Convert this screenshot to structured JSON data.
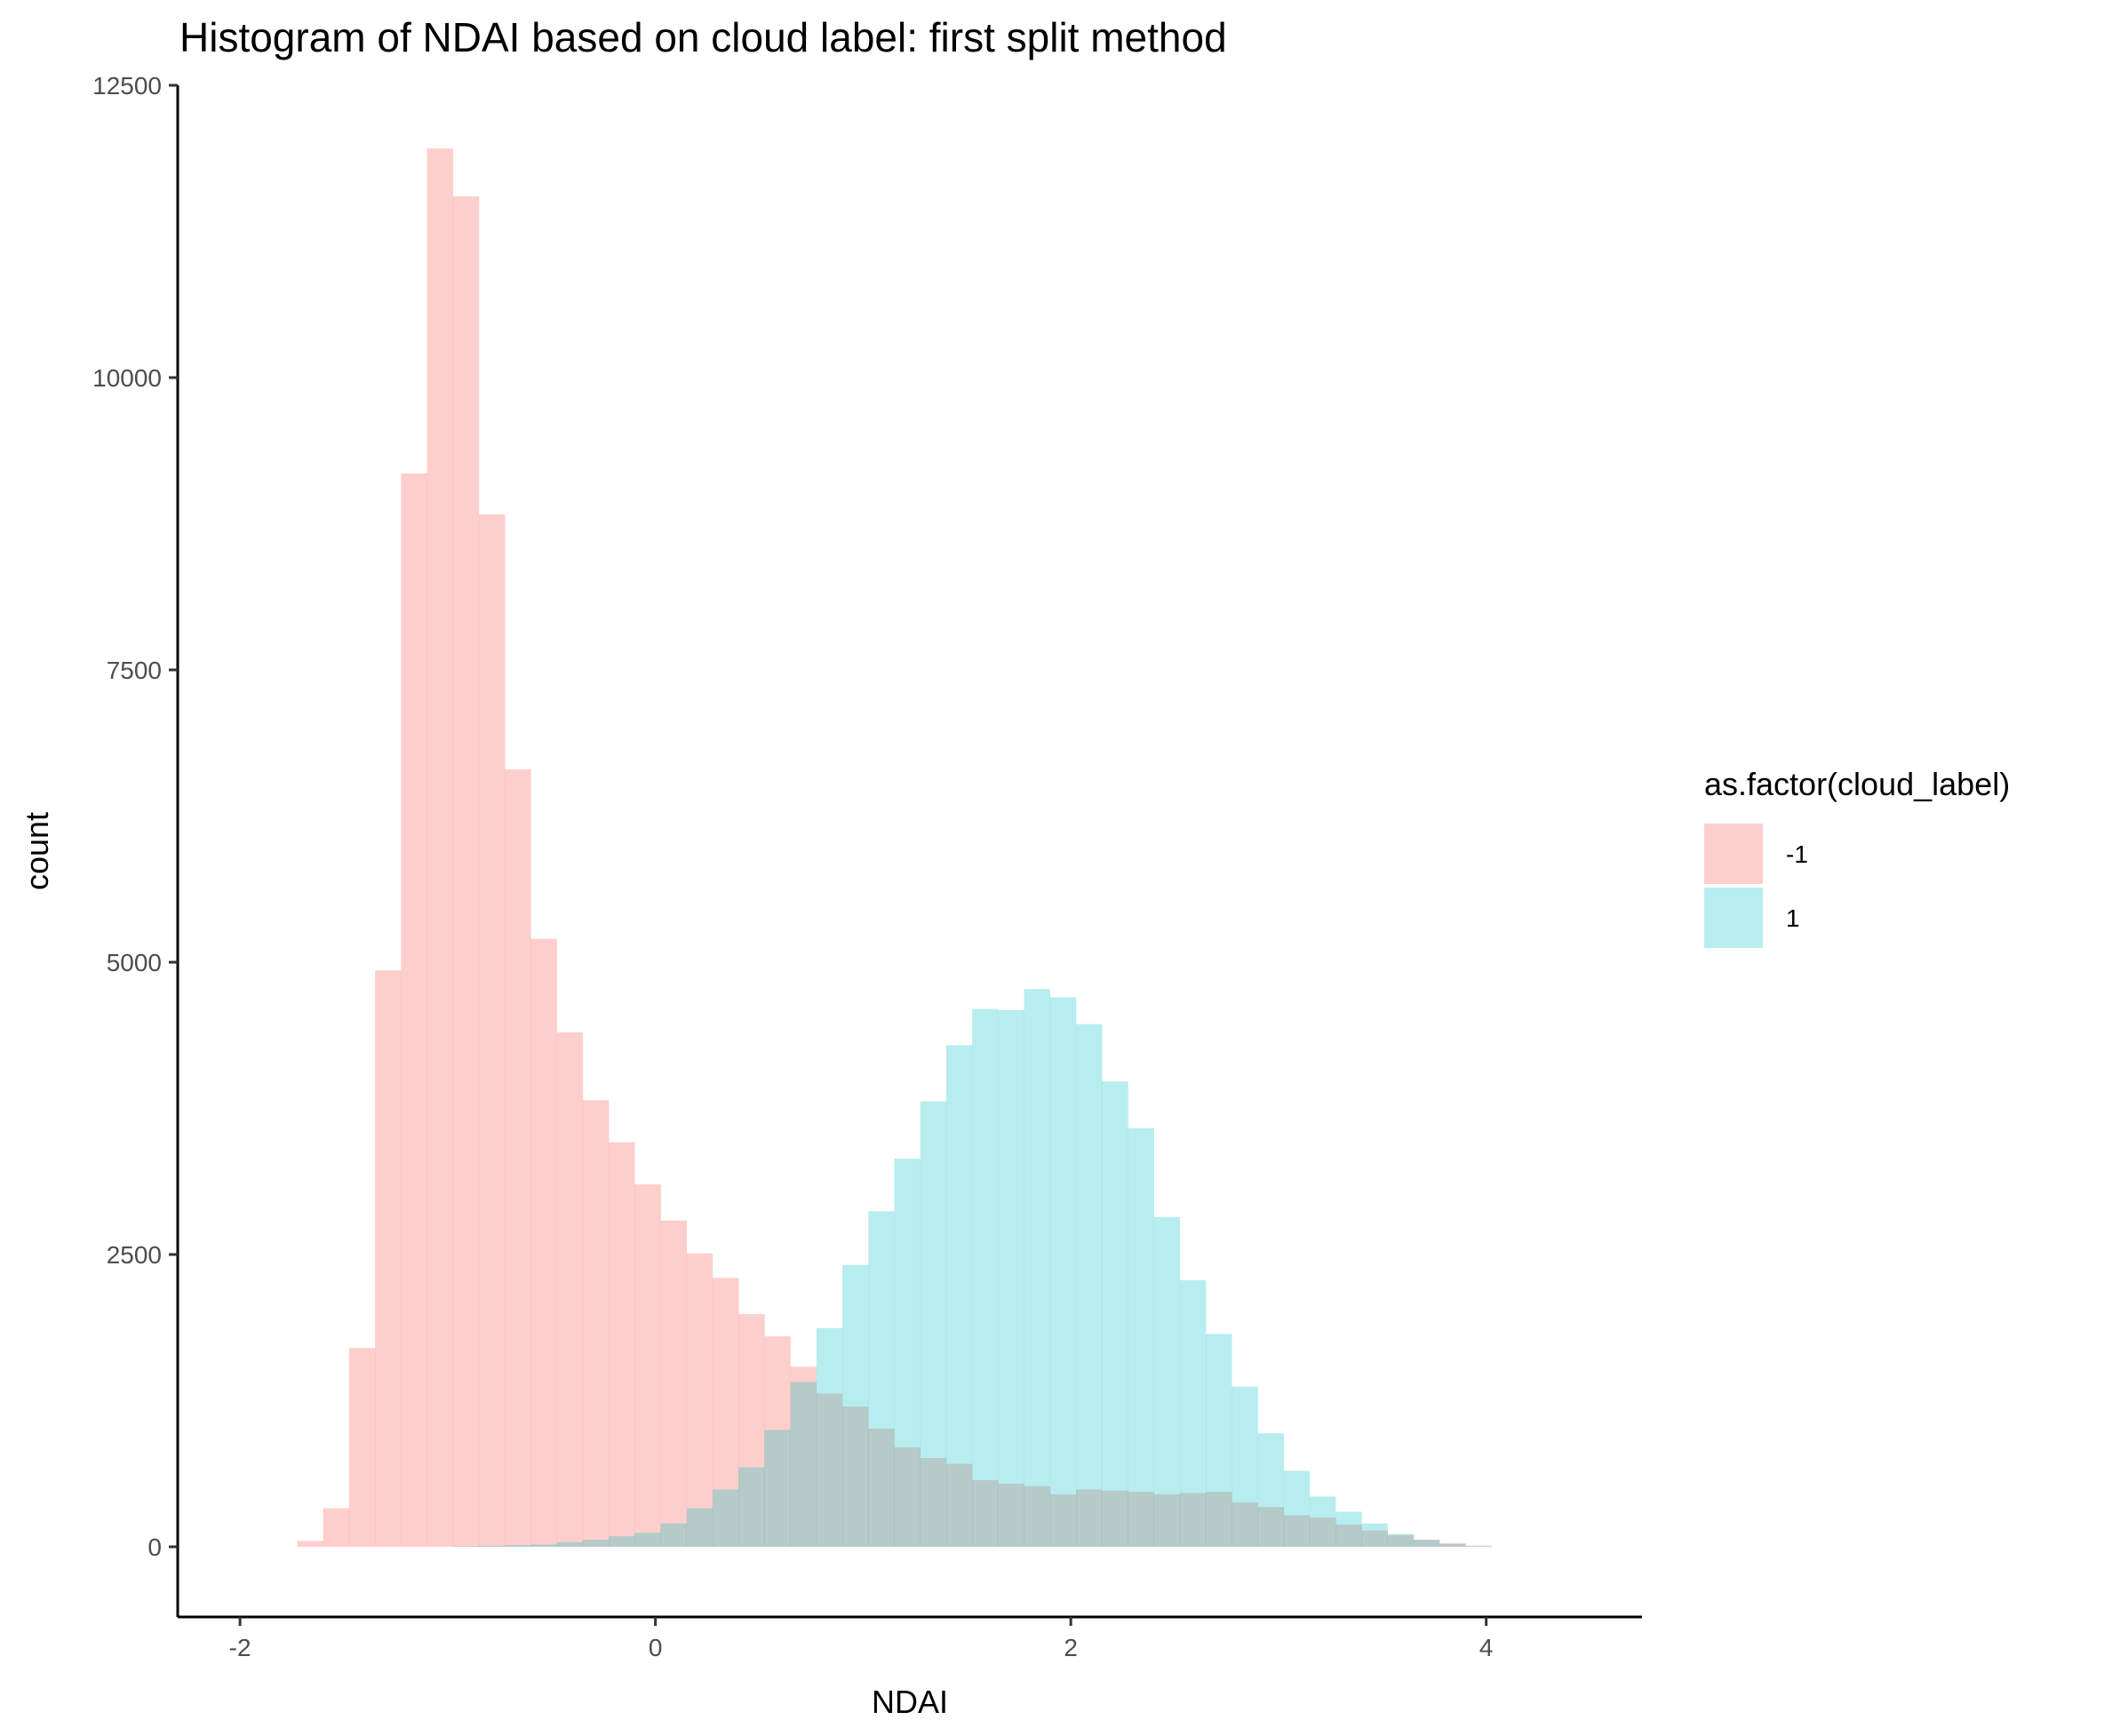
{
  "chart_data": {
    "type": "histogram",
    "title": "Histogram of NDAI based on cloud label: first split method",
    "xlabel": "NDAI",
    "ylabel": "count",
    "xlim": [
      -2.3,
      4.75
    ],
    "ylim": [
      -600,
      12500
    ],
    "x_ticks": [
      -2,
      0,
      2,
      4
    ],
    "y_ticks": [
      0,
      2500,
      5000,
      7500,
      10000,
      12500
    ],
    "grid": false,
    "legend": {
      "title": "as.factor(cloud_label)",
      "position": "right",
      "entries": [
        "-1",
        "1"
      ]
    },
    "bin_start": -1.85,
    "bin_width": 0.125,
    "series": [
      {
        "name": "-1",
        "color": "#F8766D",
        "opacity": 0.35,
        "values": [
          0,
          50,
          330,
          1700,
          4930,
          9180,
          11960,
          11550,
          8830,
          6650,
          5200,
          4400,
          3820,
          3460,
          3100,
          2790,
          2510,
          2300,
          1990,
          1800,
          1540,
          1310,
          1200,
          1010,
          850,
          760,
          710,
          570,
          540,
          520,
          450,
          490,
          480,
          470,
          450,
          460,
          470,
          380,
          340,
          270,
          250,
          190,
          140,
          100,
          60,
          30,
          10
        ]
      },
      {
        "name": "1",
        "color": "#00BFC4",
        "opacity": 0.28,
        "values": [
          0,
          0,
          0,
          0,
          0,
          0,
          0,
          5,
          10,
          15,
          20,
          40,
          60,
          90,
          120,
          200,
          330,
          490,
          680,
          1000,
          1410,
          1870,
          2410,
          2870,
          3320,
          3810,
          4290,
          4600,
          4590,
          4770,
          4700,
          4470,
          3980,
          3580,
          2820,
          2280,
          1820,
          1370,
          970,
          650,
          430,
          300,
          200,
          110,
          60,
          25,
          5
        ]
      }
    ]
  }
}
